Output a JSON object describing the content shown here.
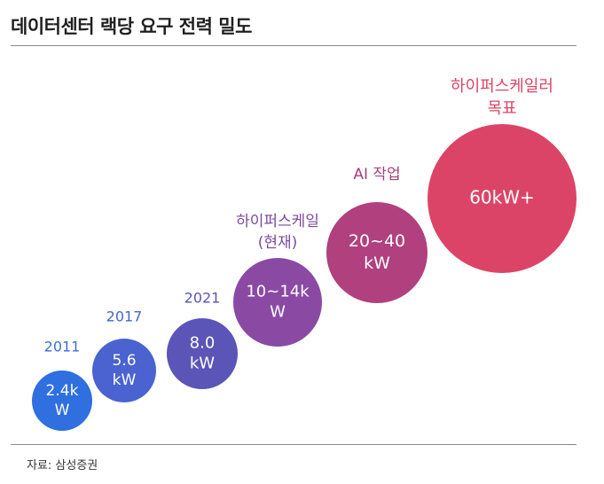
{
  "title": "데이터센터 랙당 요구 전력 밀도",
  "source": "자료: 삼성증권",
  "chart_data": {
    "type": "bubble",
    "items": [
      {
        "label": [
          "2011"
        ],
        "value_text": [
          "2.4k",
          "W"
        ],
        "value_kw": 2.4,
        "color": "#2f6fe0",
        "label_color": "#3d6fd8"
      },
      {
        "label": [
          "2017"
        ],
        "value_text": [
          "5.6",
          "kW"
        ],
        "value_kw": 5.6,
        "color": "#4a63d0",
        "label_color": "#4a63d0"
      },
      {
        "label": [
          "2021"
        ],
        "value_text": [
          "8.0",
          "kW"
        ],
        "value_kw": 8.0,
        "color": "#5b55b8",
        "label_color": "#5656b8"
      },
      {
        "label": [
          "하이퍼스케일",
          "(현재)"
        ],
        "value_text": [
          "10~14k",
          "W"
        ],
        "value_kw_range": [
          10,
          14
        ],
        "color": "#8a4aa4",
        "label_color": "#7a4a9c"
      },
      {
        "label": [
          "AI 작업"
        ],
        "value_text": [
          "20~40",
          "kW"
        ],
        "value_kw_range": [
          20,
          40
        ],
        "color": "#b0407e",
        "label_color": "#a8407c"
      },
      {
        "label": [
          "하이퍼스케일러",
          "목표"
        ],
        "value_text": [
          "60kW+"
        ],
        "value_kw": 60,
        "color": "#dc4467",
        "label_color": "#dc4467"
      }
    ]
  }
}
